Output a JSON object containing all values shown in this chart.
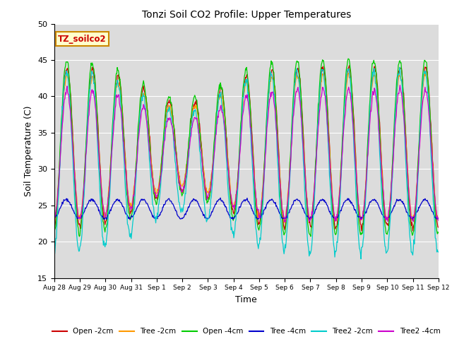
{
  "title": "Tonzi Soil CO2 Profile: Upper Temperatures",
  "xlabel": "Time",
  "ylabel": "Soil Temperature (C)",
  "ylim": [
    15,
    50
  ],
  "yticks": [
    15,
    20,
    25,
    30,
    35,
    40,
    45,
    50
  ],
  "annotation": "TZ_soilco2",
  "annotation_color": "#cc0000",
  "annotation_box_color": "#ffffcc",
  "annotation_box_edge": "#cc8800",
  "plot_bg_color": "#dcdcdc",
  "series_colors": {
    "Open -2cm": "#cc0000",
    "Tree -2cm": "#ff9900",
    "Open -4cm": "#00cc00",
    "Tree -4cm": "#0000cc",
    "Tree2 -2cm": "#00cccc",
    "Tree2 -4cm": "#cc00cc"
  },
  "xtick_labels": [
    "Aug 28",
    "Aug 29",
    "Aug 30",
    "Aug 31",
    "Sep 1",
    "Sep 2",
    "Sep 3",
    "Sep 4",
    "Sep 5",
    "Sep 6",
    "Sep 7",
    "Sep 8",
    "Sep 9",
    "Sep 10",
    "Sep 11",
    "Sep 12"
  ],
  "num_days": 15,
  "points_per_day": 48
}
